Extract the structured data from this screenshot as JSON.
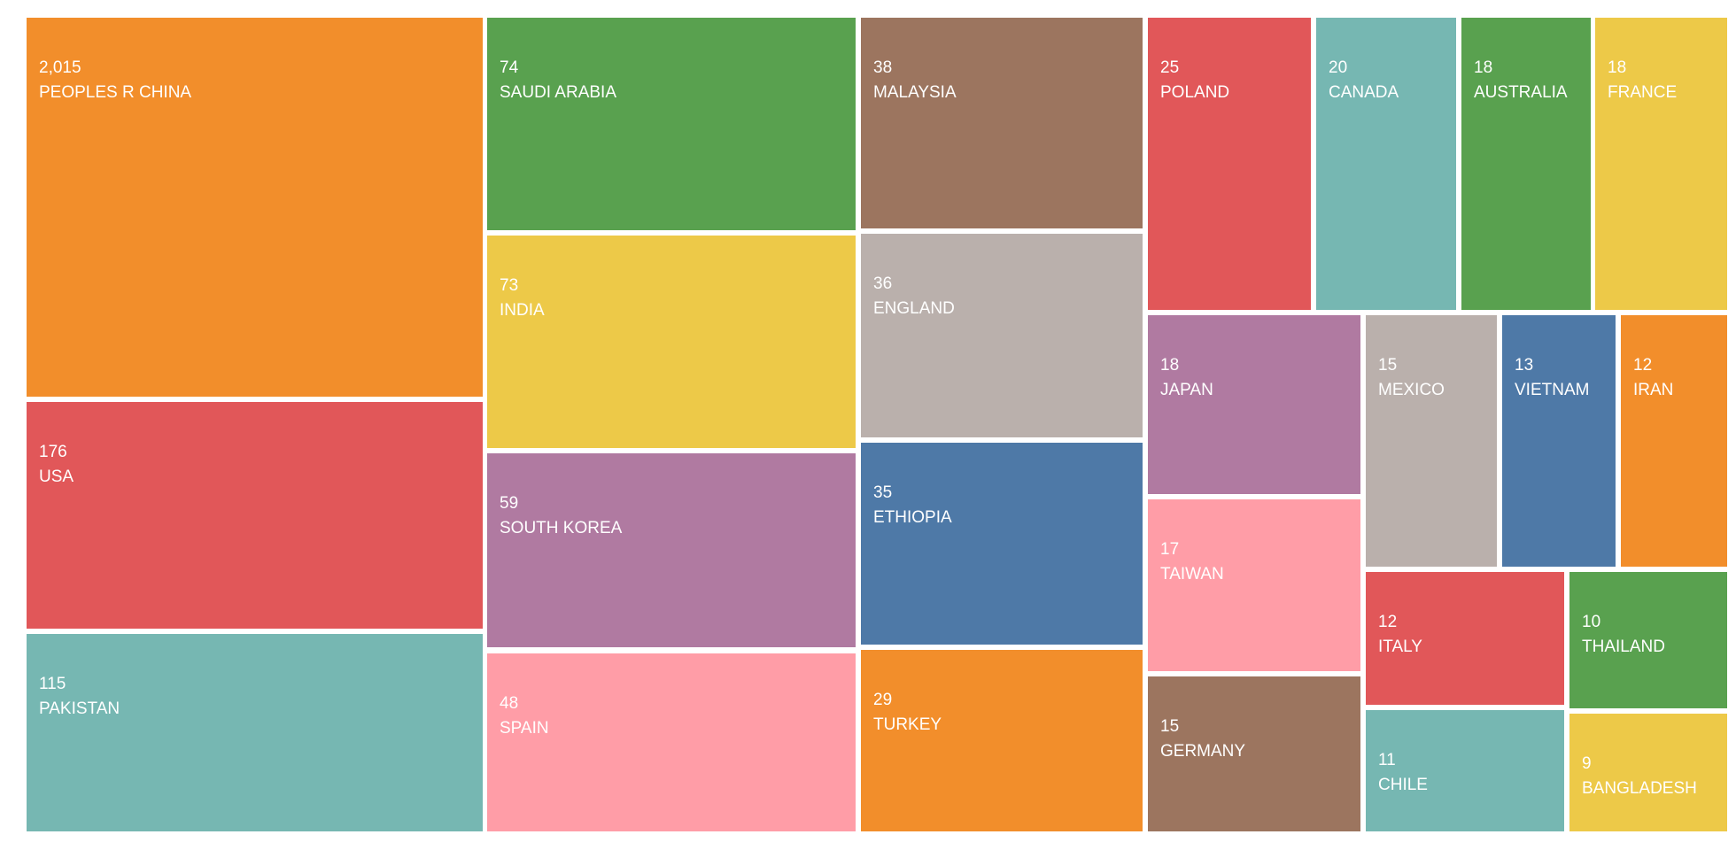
{
  "chart_data": {
    "type": "treemap",
    "items": [
      {
        "name": "PEOPLES R CHINA",
        "value": 2015,
        "label": "2,015",
        "color": "#F28E2B"
      },
      {
        "name": "USA",
        "value": 176,
        "label": "176",
        "color": "#E15759"
      },
      {
        "name": "PAKISTAN",
        "value": 115,
        "label": "115",
        "color": "#76B7B2"
      },
      {
        "name": "SAUDI ARABIA",
        "value": 74,
        "label": "74",
        "color": "#59A14F"
      },
      {
        "name": "INDIA",
        "value": 73,
        "label": "73",
        "color": "#EDC948"
      },
      {
        "name": "SOUTH KOREA",
        "value": 59,
        "label": "59",
        "color": "#B07AA1"
      },
      {
        "name": "SPAIN",
        "value": 48,
        "label": "48",
        "color": "#FF9DA7"
      },
      {
        "name": "MALAYSIA",
        "value": 38,
        "label": "38",
        "color": "#9C755F"
      },
      {
        "name": "ENGLAND",
        "value": 36,
        "label": "36",
        "color": "#BAB0AC"
      },
      {
        "name": "ETHIOPIA",
        "value": 35,
        "label": "35",
        "color": "#4E79A7"
      },
      {
        "name": "TURKEY",
        "value": 29,
        "label": "29",
        "color": "#F28E2B"
      },
      {
        "name": "POLAND",
        "value": 25,
        "label": "25",
        "color": "#E15759"
      },
      {
        "name": "CANADA",
        "value": 20,
        "label": "20",
        "color": "#76B7B2"
      },
      {
        "name": "AUSTRALIA",
        "value": 18,
        "label": "18",
        "color": "#59A14F"
      },
      {
        "name": "FRANCE",
        "value": 18,
        "label": "18",
        "color": "#EDC948"
      },
      {
        "name": "JAPAN",
        "value": 18,
        "label": "18",
        "color": "#B07AA1"
      },
      {
        "name": "TAIWAN",
        "value": 17,
        "label": "17",
        "color": "#FF9DA7"
      },
      {
        "name": "GERMANY",
        "value": 15,
        "label": "15",
        "color": "#9C755F"
      },
      {
        "name": "MEXICO",
        "value": 15,
        "label": "15",
        "color": "#BAB0AC"
      },
      {
        "name": "VIETNAM",
        "value": 13,
        "label": "13",
        "color": "#4E79A7"
      },
      {
        "name": "IRAN",
        "value": 12,
        "label": "12",
        "color": "#F28E2B"
      },
      {
        "name": "ITALY",
        "value": 12,
        "label": "12",
        "color": "#E15759"
      },
      {
        "name": "CHILE",
        "value": 11,
        "label": "11",
        "color": "#76B7B2"
      },
      {
        "name": "THAILAND",
        "value": 10,
        "label": "10",
        "color": "#59A14F"
      },
      {
        "name": "BANGLADESH",
        "value": 9,
        "label": "9",
        "color": "#EDC948"
      }
    ]
  }
}
